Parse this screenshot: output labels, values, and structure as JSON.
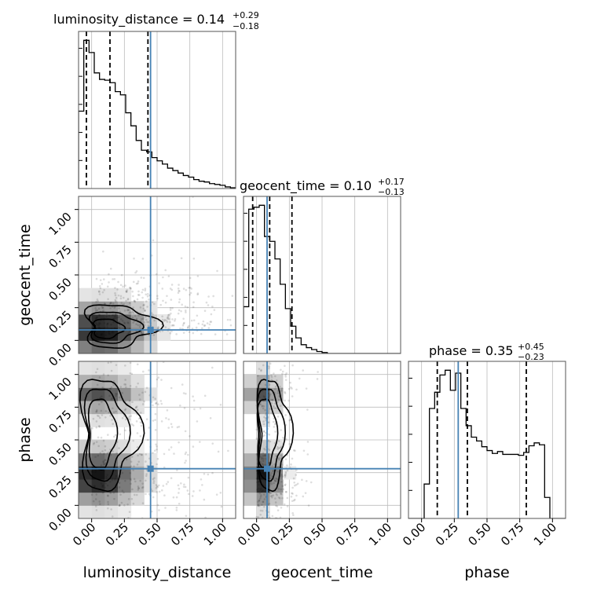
{
  "chart_data": {
    "type": "corner",
    "parameters": [
      "luminosity_distance",
      "geocent_time",
      "phase"
    ],
    "injection": {
      "luminosity_distance": 0.45,
      "geocent_time": 0.08,
      "phase": 0.28
    },
    "range": [
      -0.1,
      1.1
    ],
    "ticks": [
      "0.00",
      "0.25",
      "0.50",
      "0.75",
      "1.00"
    ],
    "tick_values": [
      0.0,
      0.25,
      0.5,
      0.75,
      1.0
    ],
    "titles": [
      {
        "param": "luminosity_distance",
        "prefix": "luminosity_distance = 0.14",
        "plus": "+0.29",
        "minus": "−0.18"
      },
      {
        "param": "geocent_time",
        "prefix": "geocent_time = 0.10",
        "plus": "+0.17",
        "minus": "−0.13"
      },
      {
        "param": "phase",
        "prefix": "phase = 0.35",
        "plus": "+0.45",
        "minus": "−0.23"
      }
    ],
    "histograms": [
      {
        "param": "luminosity_distance",
        "bin_edges": [
          -0.1,
          -0.06,
          -0.02,
          0.02,
          0.06,
          0.1,
          0.14,
          0.18,
          0.22,
          0.26,
          0.3,
          0.34,
          0.38,
          0.42,
          0.46,
          0.5,
          0.54,
          0.58,
          0.62,
          0.66,
          0.7,
          0.74,
          0.78,
          0.82,
          0.86,
          0.9,
          0.94,
          0.98,
          1.02,
          1.06,
          1.1
        ],
        "counts": [
          95,
          182,
          167,
          142,
          134,
          133,
          130,
          119,
          115,
          93,
          77,
          59,
          47,
          45,
          38,
          34,
          30,
          25,
          22,
          19,
          16,
          14,
          11,
          9,
          8,
          6,
          5,
          4,
          2,
          1
        ],
        "quantiles": [
          -0.04,
          0.14,
          0.43
        ]
      },
      {
        "param": "geocent_time",
        "bin_edges": [
          -0.1,
          -0.06,
          -0.02,
          0.02,
          0.06,
          0.1,
          0.14,
          0.18,
          0.22,
          0.26,
          0.3,
          0.34,
          0.38,
          0.42,
          0.46,
          0.5,
          0.54,
          0.58,
          0.62,
          0.66,
          0.7,
          0.74,
          0.78,
          0.82,
          0.86,
          0.9,
          0.94,
          0.98,
          1.02,
          1.06,
          1.1
        ],
        "counts": [
          48,
          148,
          150,
          152,
          120,
          115,
          97,
          71,
          46,
          28,
          16,
          9,
          6,
          4,
          2,
          1,
          0,
          0,
          0,
          0,
          0,
          0,
          0,
          0,
          0,
          0,
          0,
          0,
          0,
          0
        ],
        "quantiles": [
          -0.03,
          0.1,
          0.27
        ]
      },
      {
        "param": "phase",
        "bin_edges": [
          -0.1,
          -0.06,
          -0.02,
          0.02,
          0.06,
          0.1,
          0.14,
          0.18,
          0.22,
          0.26,
          0.3,
          0.34,
          0.38,
          0.42,
          0.46,
          0.5,
          0.54,
          0.58,
          0.62,
          0.66,
          0.7,
          0.74,
          0.78,
          0.82,
          0.86,
          0.9,
          0.94,
          0.98,
          1.02,
          1.06,
          1.1
        ],
        "counts": [
          0,
          0,
          0,
          36,
          115,
          132,
          150,
          155,
          134,
          152,
          115,
          97,
          85,
          81,
          75,
          71,
          68,
          70,
          67,
          67,
          67,
          66,
          69,
          76,
          79,
          77,
          22,
          0,
          0,
          0
        ],
        "quantiles": [
          0.12,
          0.35,
          0.8
        ]
      }
    ],
    "pairs": [
      {
        "x": "luminosity_distance",
        "y": "geocent_time"
      },
      {
        "x": "luminosity_distance",
        "y": "phase"
      },
      {
        "x": "geocent_time",
        "y": "phase"
      }
    ],
    "colors": {
      "truth": "#4682b4",
      "hist": "#000000",
      "contour": "#000000",
      "grid": "#bdbdbd"
    }
  }
}
